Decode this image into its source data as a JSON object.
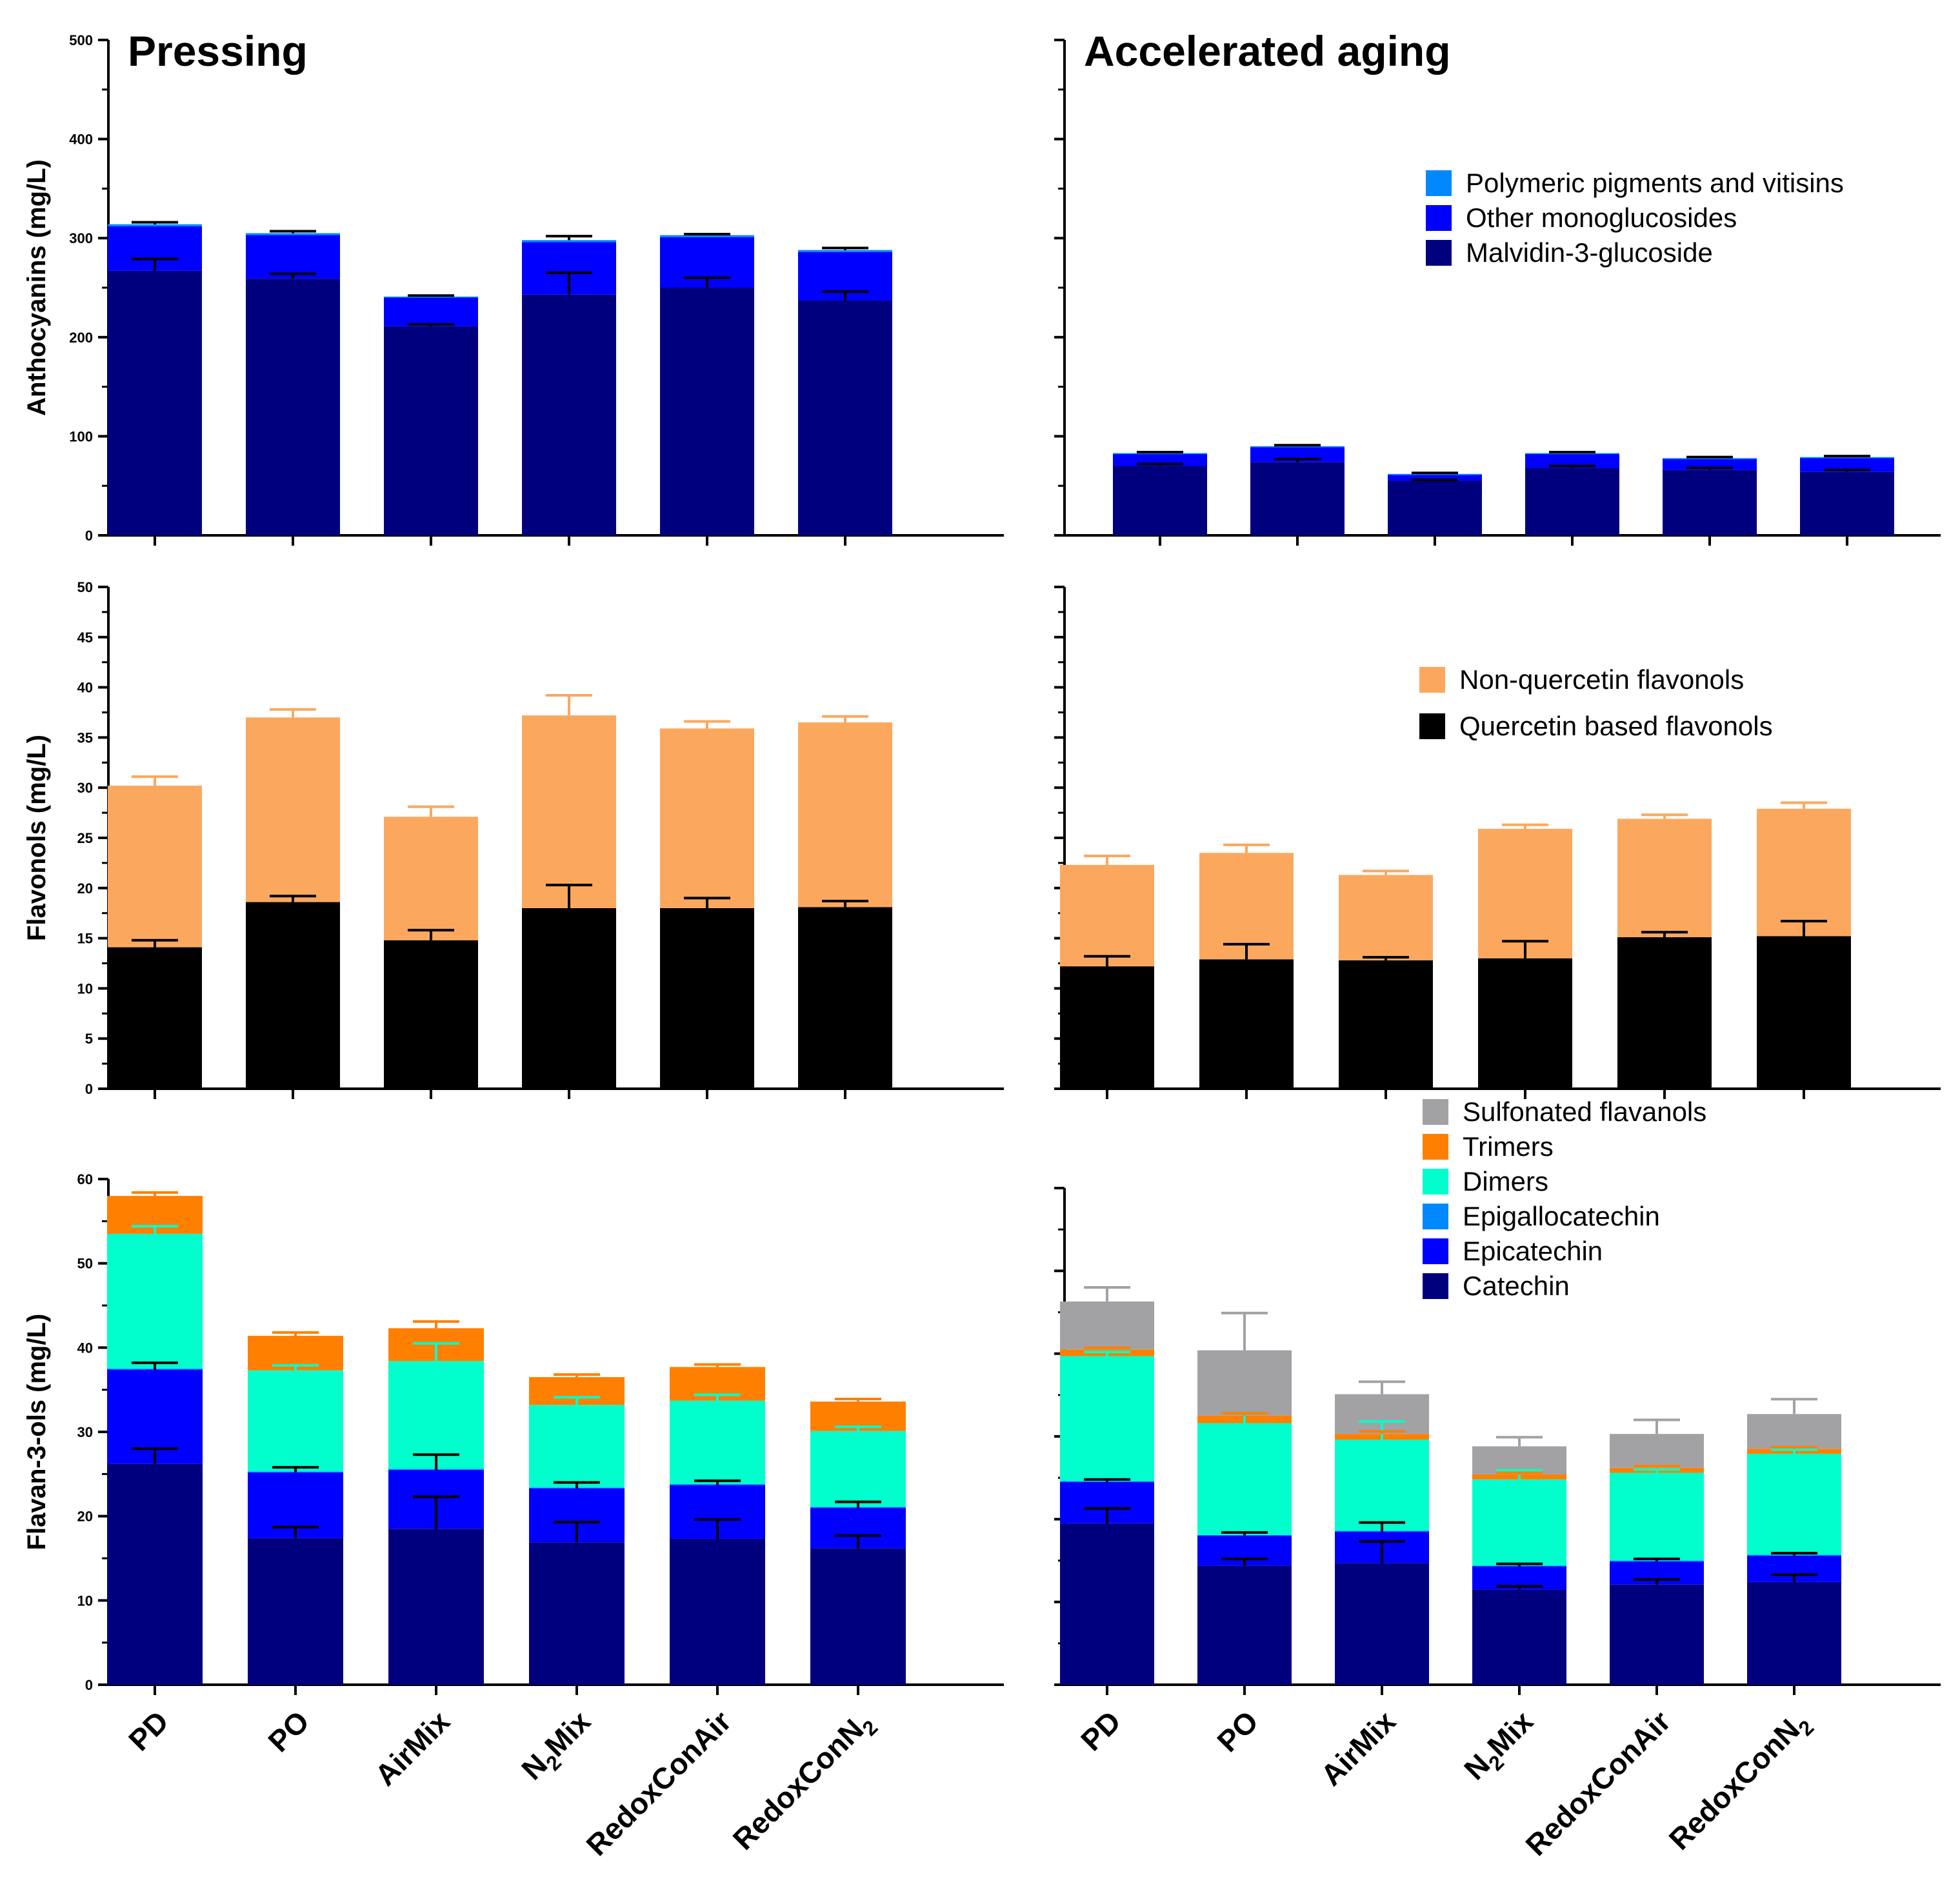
{
  "column_titles": [
    "Pressing",
    "Accelerated aging"
  ],
  "categories": [
    "PD",
    "PO",
    "AirMix",
    "N2Mix",
    "RedoxConAir",
    "RedoxConN2"
  ],
  "category_display": [
    {
      "main": "PD",
      "sub": "",
      "rest": ""
    },
    {
      "main": "PO",
      "sub": "",
      "rest": ""
    },
    {
      "main": "AirMix",
      "sub": "",
      "rest": ""
    },
    {
      "main": "N",
      "sub": "2",
      "rest": "Mix"
    },
    {
      "main": "RedoxConAir",
      "sub": "",
      "rest": ""
    },
    {
      "main": "RedoxConN",
      "sub": "2",
      "rest": ""
    }
  ],
  "chart_data": [
    {
      "type": "bar",
      "stacked": true,
      "panel": "Anthocyanins - Pressing",
      "title": "Pressing",
      "ylabel": "Anthocyanins (mg/L)",
      "ylim": [
        0,
        500
      ],
      "yticks": [
        0,
        100,
        200,
        300,
        400,
        500
      ],
      "show_tick_labels": true,
      "categories": [
        "PD",
        "PO",
        "AirMix",
        "N2Mix",
        "RedoxConAir",
        "RedoxConN2"
      ],
      "series": [
        {
          "name": "Malvidin-3-glucoside",
          "color": "#00007f",
          "values": [
            267,
            259,
            211,
            243,
            250,
            237
          ],
          "errors": [
            12,
            5,
            2,
            22,
            10,
            9
          ]
        },
        {
          "name": "Other monoglucosides",
          "color": "#0000ff",
          "values": [
            45,
            44,
            29,
            53,
            51,
            49
          ],
          "errors": [
            0,
            0,
            0,
            0,
            0,
            0
          ]
        },
        {
          "name": "Polymeric pigments and vitisins",
          "color": "#0088ff",
          "values": [
            2,
            2,
            1,
            2,
            2,
            2
          ],
          "errors": [
            2,
            2,
            1,
            4,
            1,
            2
          ]
        }
      ]
    },
    {
      "type": "bar",
      "stacked": true,
      "panel": "Anthocyanins - Accelerated aging",
      "title": "Accelerated aging",
      "ylabel": "",
      "ylim": [
        0,
        500
      ],
      "yticks": [
        0,
        100,
        200,
        300,
        400,
        500
      ],
      "show_tick_labels": false,
      "legend_position": "upper right",
      "legend": [
        "Polymeric pigments and vitisins",
        "Other monoglucosides",
        "Malvidin-3-glucoside"
      ],
      "categories": [
        "PD",
        "PO",
        "AirMix",
        "N2Mix",
        "RedoxConAir",
        "RedoxConN2"
      ],
      "series": [
        {
          "name": "Malvidin-3-glucoside",
          "color": "#00007f",
          "values": [
            70,
            74,
            55,
            68,
            66,
            64
          ],
          "errors": [
            2,
            3,
            1,
            2,
            2,
            2
          ]
        },
        {
          "name": "Other monoglucosides",
          "color": "#0000ff",
          "values": [
            12,
            15,
            6,
            14,
            11,
            14
          ],
          "errors": [
            0,
            0,
            0,
            0,
            0,
            0
          ]
        },
        {
          "name": "Polymeric pigments and vitisins",
          "color": "#0088ff",
          "values": [
            1,
            1,
            1,
            1,
            1,
            1
          ],
          "errors": [
            1,
            1,
            1,
            1,
            1,
            1
          ]
        }
      ]
    },
    {
      "type": "bar",
      "stacked": true,
      "panel": "Flavonols - Pressing",
      "ylabel": "Flavonols (mg/L)",
      "ylim": [
        0,
        50
      ],
      "yticks": [
        0,
        5,
        10,
        15,
        20,
        25,
        30,
        35,
        40,
        45,
        50
      ],
      "show_tick_labels": true,
      "categories": [
        "PD",
        "PO",
        "AirMix",
        "N2Mix",
        "RedoxConAir",
        "RedoxConN2"
      ],
      "series": [
        {
          "name": "Quercetin based flavonols",
          "color": "#000000",
          "values": [
            14.1,
            18.6,
            14.8,
            18.0,
            18.0,
            18.1
          ],
          "errors": [
            0.7,
            0.6,
            1.0,
            2.3,
            1.0,
            0.6
          ]
        },
        {
          "name": "Non-quercetin flavonols",
          "color": "#fba85e",
          "values": [
            16.1,
            18.4,
            12.3,
            19.2,
            17.9,
            18.4
          ],
          "errors": [
            0.9,
            0.8,
            1.0,
            2.0,
            0.7,
            0.6
          ]
        }
      ]
    },
    {
      "type": "bar",
      "stacked": true,
      "panel": "Flavonols - Accelerated aging",
      "ylabel": "",
      "ylim": [
        0,
        50
      ],
      "yticks": [
        0,
        5,
        10,
        15,
        20,
        25,
        30,
        35,
        40,
        45,
        50
      ],
      "show_tick_labels": false,
      "legend_position": "upper right",
      "legend": [
        "Non-quercetin flavonols",
        "Quercetin based flavonols"
      ],
      "categories": [
        "PD",
        "PO",
        "AirMix",
        "N2Mix",
        "RedoxConAir",
        "RedoxConN2"
      ],
      "series": [
        {
          "name": "Quercetin based flavonols",
          "color": "#000000",
          "values": [
            12.2,
            12.9,
            12.8,
            13.0,
            15.1,
            15.2
          ],
          "errors": [
            1.0,
            1.5,
            0.3,
            1.7,
            0.5,
            1.5
          ]
        },
        {
          "name": "Non-quercetin flavonols",
          "color": "#fba85e",
          "values": [
            10.1,
            10.6,
            8.5,
            12.9,
            11.8,
            12.7
          ],
          "errors": [
            0.9,
            0.8,
            0.4,
            0.4,
            0.4,
            0.6
          ]
        }
      ]
    },
    {
      "type": "bar",
      "stacked": true,
      "panel": "Flavan-3-ols - Pressing",
      "ylabel": "Flavan-3-ols (mg/L)",
      "ylim": [
        0,
        60
      ],
      "yticks": [
        0,
        10,
        20,
        30,
        40,
        50,
        60
      ],
      "show_tick_labels": true,
      "categories": [
        "PD",
        "PO",
        "AirMix",
        "N2Mix",
        "RedoxConAir",
        "RedoxConN2"
      ],
      "series": [
        {
          "name": "Catechin",
          "color": "#00007f",
          "values": [
            26.2,
            17.4,
            18.5,
            16.9,
            17.3,
            16.2
          ],
          "errors": [
            1.8,
            1.3,
            3.8,
            2.4,
            2.3,
            1.5
          ]
        },
        {
          "name": "Epicatechin",
          "color": "#0000ff",
          "values": [
            11.2,
            7.8,
            7.0,
            6.4,
            6.4,
            4.8
          ],
          "errors": [
            0.8,
            0.6,
            1.8,
            0.7,
            0.5,
            0.7
          ]
        },
        {
          "name": "Epigallocatechin",
          "color": "#0088ff",
          "values": [
            0.1,
            0.1,
            0.1,
            0.1,
            0.1,
            0.1
          ],
          "errors": [
            0,
            0,
            0,
            0,
            0,
            0
          ]
        },
        {
          "name": "Dimers",
          "color": "#00ffcc",
          "values": [
            16.0,
            12.0,
            12.8,
            9.8,
            9.9,
            9.0
          ],
          "errors": [
            0.9,
            0.6,
            2.1,
            0.9,
            0.7,
            0.5
          ]
        },
        {
          "name": "Trimers",
          "color": "#ff8000",
          "values": [
            4.5,
            4.1,
            3.9,
            3.3,
            4.0,
            3.5
          ],
          "errors": [
            0.4,
            0.4,
            0.8,
            0.3,
            0.3,
            0.3
          ]
        }
      ]
    },
    {
      "type": "bar",
      "stacked": true,
      "panel": "Flavan-3-ols - Accelerated aging",
      "ylabel": "",
      "ylim": [
        0,
        60
      ],
      "yticks": [
        0,
        10,
        20,
        30,
        40,
        50,
        60
      ],
      "show_tick_labels": false,
      "legend_position": "upper right",
      "legend": [
        "Sulfonated flavanols",
        "Trimers",
        "Dimers",
        "Epigallocatechin",
        "Epicatechin",
        "Catechin"
      ],
      "categories": [
        "PD",
        "PO",
        "AirMix",
        "N2Mix",
        "RedoxConAir",
        "RedoxConN2"
      ],
      "series": [
        {
          "name": "Catechin",
          "color": "#00007f",
          "values": [
            19.5,
            14.4,
            14.7,
            11.5,
            12.1,
            12.4
          ],
          "errors": [
            1.8,
            0.8,
            2.6,
            0.4,
            0.6,
            0.9
          ]
        },
        {
          "name": "Epicatechin",
          "color": "#0000ff",
          "values": [
            5.0,
            3.6,
            3.8,
            2.8,
            2.8,
            3.2
          ],
          "errors": [
            0.3,
            0.4,
            1.1,
            0.3,
            0.3,
            0.3
          ]
        },
        {
          "name": "Epigallocatechin",
          "color": "#0088ff",
          "values": [
            0.1,
            0.1,
            0.1,
            0.1,
            0.1,
            0.1
          ],
          "errors": [
            0,
            0,
            0,
            0,
            0,
            0
          ]
        },
        {
          "name": "Dimers",
          "color": "#00ffcc",
          "values": [
            15.1,
            13.5,
            11.0,
            10.4,
            10.6,
            12.2
          ],
          "errors": [
            0.5,
            1.2,
            2.2,
            1.1,
            0.4,
            0.5
          ]
        },
        {
          "name": "Trimers",
          "color": "#ff8000",
          "values": [
            0.8,
            0.9,
            0.7,
            0.6,
            0.6,
            0.6
          ],
          "errors": [
            0.2,
            0.3,
            0.3,
            0.2,
            0.2,
            0.2
          ]
        },
        {
          "name": "Sulfonated flavanols",
          "color": "#a2a2a5",
          "values": [
            5.8,
            7.9,
            4.8,
            3.4,
            4.1,
            4.2
          ],
          "errors": [
            1.7,
            4.5,
            1.5,
            1.1,
            1.7,
            1.8
          ]
        }
      ]
    }
  ]
}
